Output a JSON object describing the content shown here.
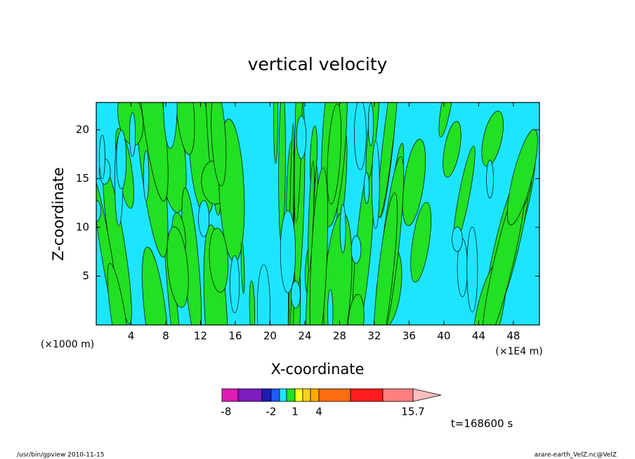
{
  "chart_data": {
    "type": "contour",
    "title": "vertical velocity",
    "x_label": "X-coordinate",
    "y_label": "Z-coordinate",
    "x_unit_left": "(×1000 m)",
    "x_unit_right": "(×1E4 m)",
    "xlim": [
      0,
      51
    ],
    "xticks": [
      4,
      8,
      12,
      16,
      20,
      24,
      28,
      32,
      36,
      40,
      44,
      48
    ],
    "ylim": [
      0,
      22.8
    ],
    "yticks": [
      5,
      10,
      15,
      20
    ],
    "colorbar": {
      "colors": [
        "#e01cb4",
        "#7a1cc0",
        "#1c1cb4",
        "#1c5cff",
        "#1ce6ff",
        "#22e022",
        "#ffff22",
        "#ffd21c",
        "#ffaa00",
        "#ff6e10",
        "#ff1c1c",
        "#ff7e7e"
      ],
      "extend_color": "#ffbcbc",
      "ticks": [
        -8,
        -2,
        1,
        4,
        15.7
      ]
    },
    "time_label": "t=168600 s",
    "footer_left": "/usr/bin/gpview  2010-11-15",
    "footer_right": "arare-earth_VelZ.nc@VelZ"
  }
}
